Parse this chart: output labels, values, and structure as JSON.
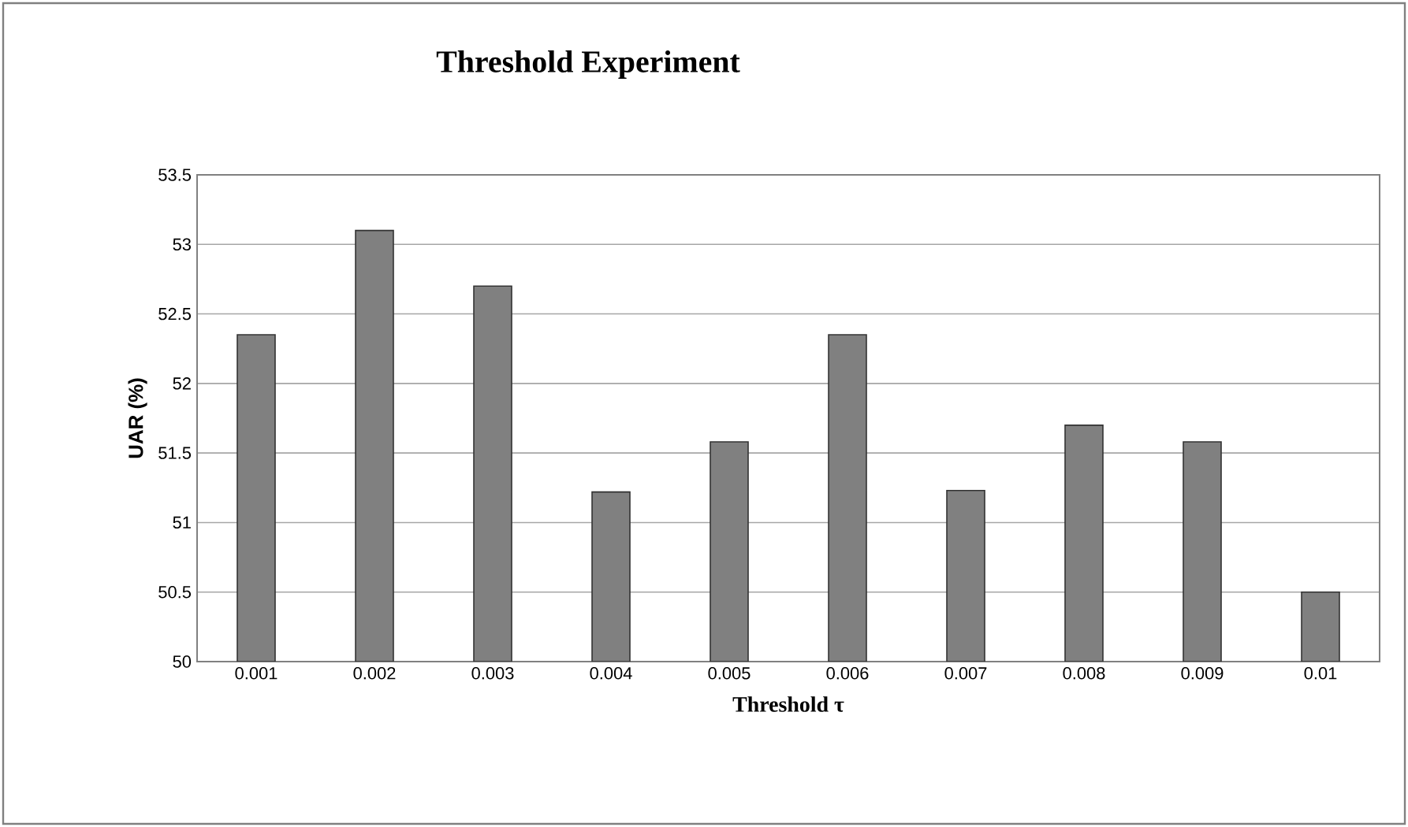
{
  "chart_data": {
    "type": "bar",
    "title": "Threshold Experiment",
    "xlabel": "Threshold τ",
    "ylabel": "UAR (%)",
    "categories": [
      "0.001",
      "0.002",
      "0.003",
      "0.004",
      "0.005",
      "0.006",
      "0.007",
      "0.008",
      "0.009",
      "0.01"
    ],
    "values": [
      52.35,
      53.1,
      52.7,
      51.22,
      51.58,
      52.35,
      51.23,
      51.7,
      51.58,
      50.5
    ],
    "color": "#808080",
    "ylim": [
      50,
      53.5
    ],
    "yticks": [
      50,
      50.5,
      51,
      51.5,
      52,
      52.5,
      53,
      53.5
    ],
    "grid": "y"
  }
}
